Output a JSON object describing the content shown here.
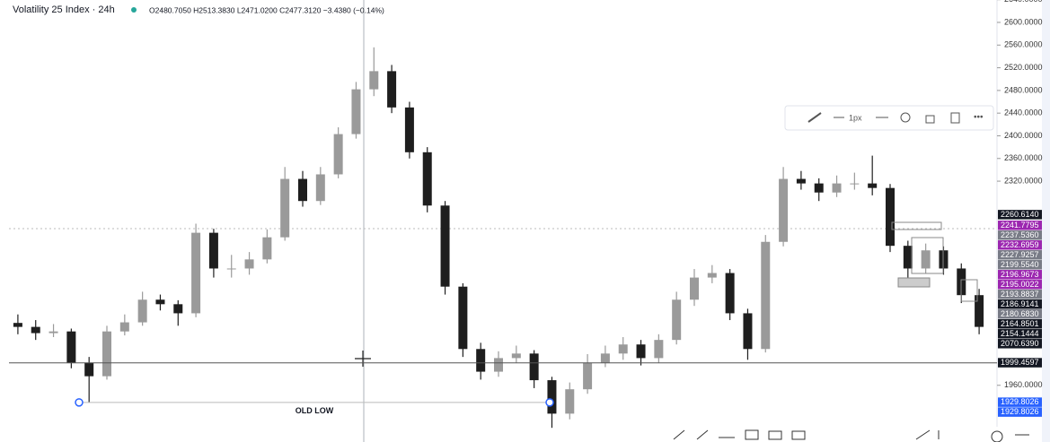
{
  "header": {
    "symbol": "Volatility 25 Index · 24h",
    "ohlc": "O2480.7050 H2513.3830 L2471.0200 C2477.3120 −3.4380 (−0.14%)"
  },
  "toolbar": {
    "width_label": "1px"
  },
  "chart_data": {
    "type": "candlestick",
    "up_color": "#9a9a9a",
    "down_color": "#1e1e1e",
    "ylim": [
      1860,
      2639.5
    ],
    "yticks": [
      {
        "value": 2640,
        "label": "2640.0000"
      },
      {
        "value": 2600,
        "label": "2600.0000"
      },
      {
        "value": 2560,
        "label": "2560.0000"
      },
      {
        "value": 2520,
        "label": "2520.0000"
      },
      {
        "value": 2480,
        "label": "2480.0000"
      },
      {
        "value": 2440,
        "label": "2440.0000"
      },
      {
        "value": 2400,
        "label": "2400.0000"
      },
      {
        "value": 2360,
        "label": "2360.0000"
      },
      {
        "value": 2320,
        "label": "2320.0000"
      },
      {
        "value": 1960,
        "label": "1960.0000"
      }
    ],
    "open": [
      2070,
      2063,
      2052,
      2055,
      2000,
      1976,
      2055,
      2071,
      2111,
      2103,
      2087,
      2229,
      2166,
      2166,
      2182,
      2221,
      2324,
      2285,
      2332,
      2403,
      2482,
      2514,
      2450,
      2371,
      2277,
      2134,
      2024,
      1984,
      2008,
      2016,
      1969,
      1910,
      1953,
      2000,
      2016,
      2032,
      2008,
      2040,
      2111,
      2150,
      2158,
      2087,
      2024,
      2213,
      2324,
      2316,
      2300,
      2316,
      2316,
      2308,
      2206,
      2166,
      2198,
      2166,
      2119
    ],
    "high": [
      2085,
      2075,
      2068,
      2060,
      2010,
      2065,
      2085,
      2125,
      2120,
      2110,
      2245,
      2236,
      2190,
      2195,
      2235,
      2345,
      2338,
      2345,
      2415,
      2495,
      2556,
      2525,
      2460,
      2380,
      2285,
      2140,
      2035,
      2020,
      2030,
      2022,
      1975,
      1965,
      2015,
      2030,
      2045,
      2040,
      2050,
      2125,
      2165,
      2172,
      2165,
      2095,
      2225,
      2345,
      2338,
      2325,
      2330,
      2335,
      2365,
      2315,
      2215,
      2210,
      2205,
      2175,
      2130
    ],
    "low": [
      2050,
      2040,
      2045,
      1990,
      1930,
      1970,
      2048,
      2065,
      2092,
      2065,
      2080,
      2150,
      2150,
      2155,
      2175,
      2215,
      2275,
      2278,
      2325,
      2395,
      2470,
      2440,
      2360,
      2265,
      2120,
      2010,
      1970,
      1975,
      2000,
      1955,
      1885,
      1900,
      1945,
      1992,
      2005,
      1995,
      2000,
      2032,
      2100,
      2140,
      2075,
      2005,
      2018,
      2205,
      2305,
      2285,
      2292,
      2305,
      2295,
      2195,
      2150,
      2158,
      2155,
      2105,
      2050
    ],
    "close": [
      2063,
      2052,
      2055,
      2000,
      1976,
      2055,
      2071,
      2111,
      2103,
      2087,
      2229,
      2166,
      2166,
      2182,
      2221,
      2324,
      2285,
      2332,
      2403,
      2482,
      2514,
      2450,
      2371,
      2277,
      2134,
      2024,
      1984,
      2008,
      2016,
      1969,
      1910,
      1953,
      2000,
      2016,
      2032,
      2008,
      2040,
      2111,
      2150,
      2158,
      2087,
      2024,
      2213,
      2324,
      2316,
      2300,
      2316,
      2316,
      2308,
      2206,
      2166,
      2198,
      2166,
      2119,
      2063
    ],
    "price_tags": [
      {
        "value": 2260.614,
        "label": "2260.6140",
        "color": "#131722"
      },
      {
        "value": 2241.7795,
        "label": "2241.7795",
        "color": "#9c27b0"
      },
      {
        "value": 2237.536,
        "label": "2237.5360",
        "color": "#787b86"
      },
      {
        "value": 2232.6959,
        "label": "2232.6959",
        "color": "#9c27b0"
      },
      {
        "value": 2227.9257,
        "label": "2227.9257",
        "color": "#787b86"
      },
      {
        "value": 2199.554,
        "label": "2199.5540",
        "color": "#787b86"
      },
      {
        "value": 2196.9673,
        "label": "2196.9673",
        "color": "#9c27b0"
      },
      {
        "value": 2195.0022,
        "label": "2195.0022",
        "color": "#9c27b0"
      },
      {
        "value": 2193.8837,
        "label": "2193.8837",
        "color": "#787b86"
      },
      {
        "value": 2186.9141,
        "label": "2186.9141",
        "color": "#131722"
      },
      {
        "value": 2180.683,
        "label": "2180.6830",
        "color": "#787b86"
      },
      {
        "value": 2164.8501,
        "label": "2164.8501",
        "color": "#131722"
      },
      {
        "value": 2154.1444,
        "label": "2154.1444",
        "color": "#131722"
      },
      {
        "value": 2070.639,
        "label": "2070.6390",
        "color": "#131722"
      },
      {
        "value": 1999.4597,
        "label": "1999.4597",
        "color": "#131722"
      },
      {
        "value": 1929.8026,
        "label": "1929.8026",
        "color": "#2962ff"
      },
      {
        "value": 1929.8026,
        "label": "1929.8026",
        "color": "#2962ff"
      }
    ],
    "annotation": "OLD LOW"
  }
}
